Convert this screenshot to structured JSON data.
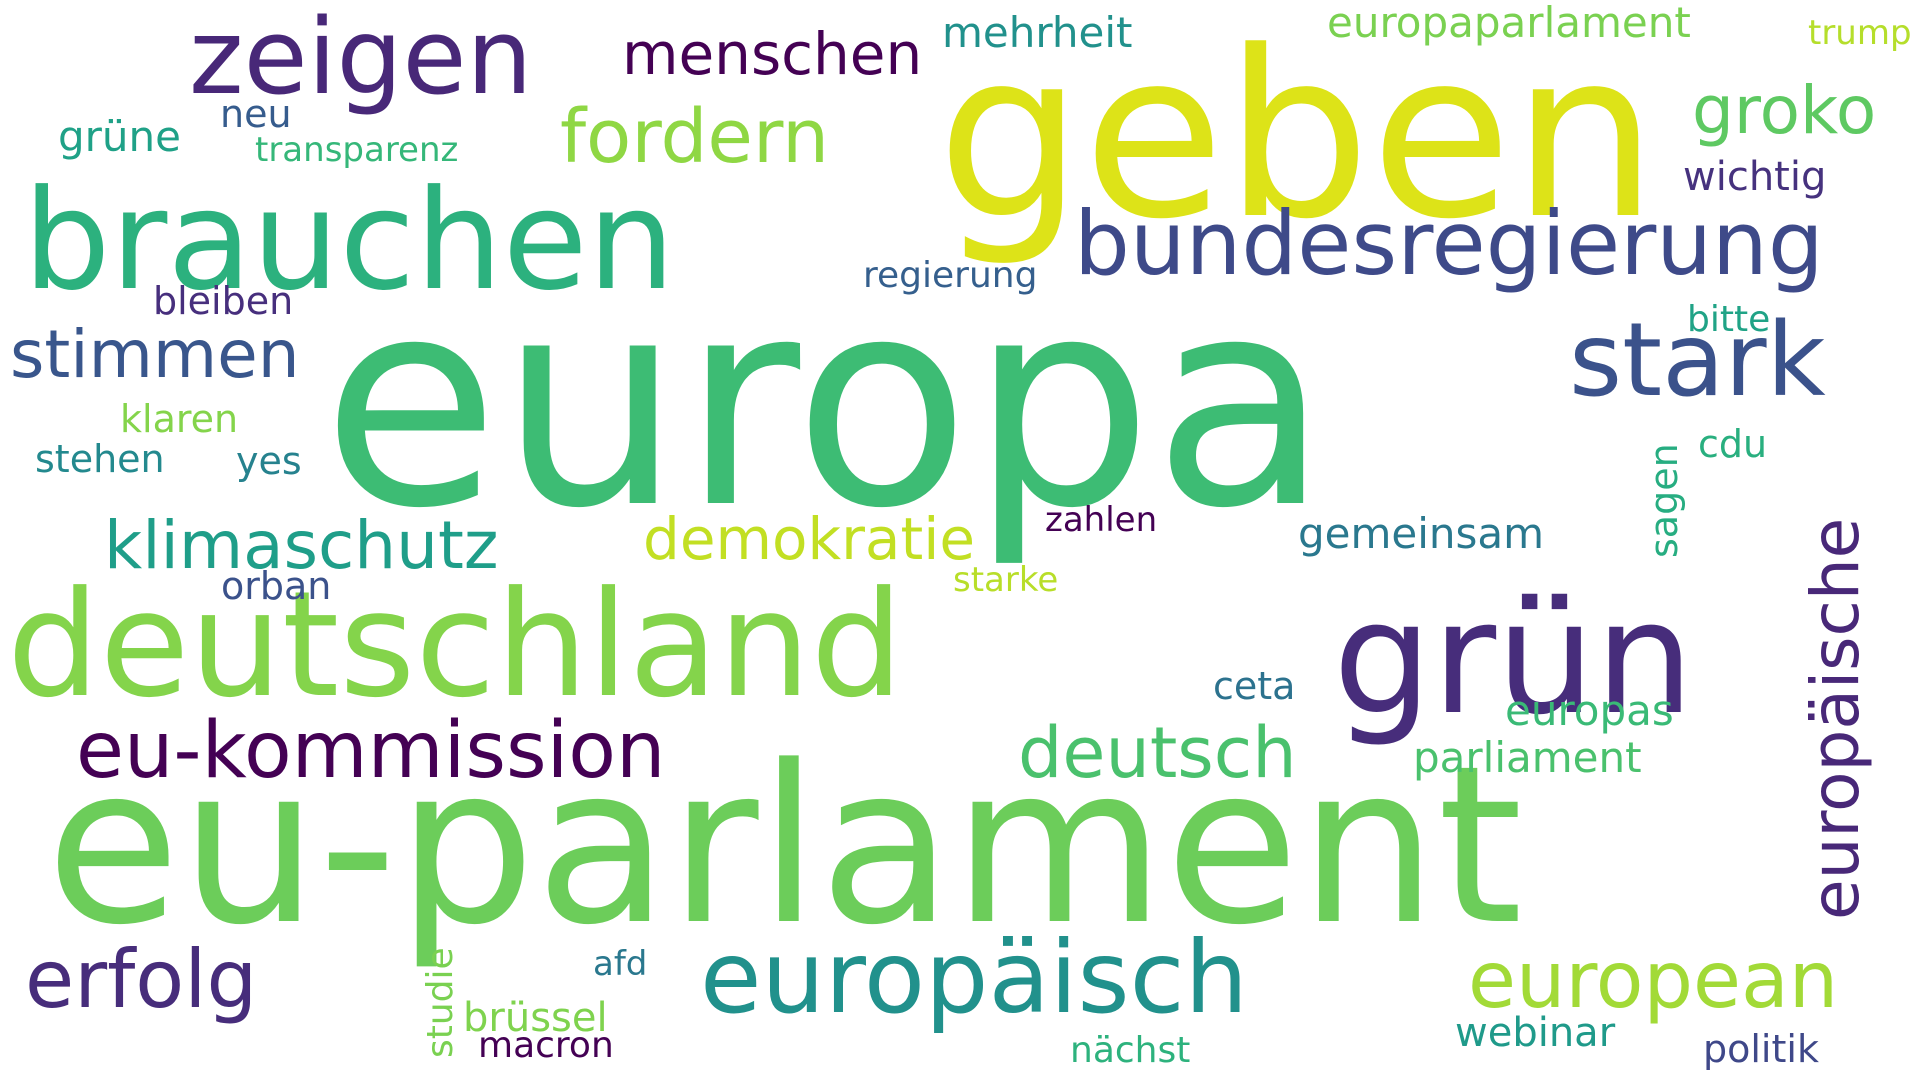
{
  "words": [
    {
      "text": "europa",
      "color": "#3dbc74"
    },
    {
      "text": "geben",
      "color": "#dde318"
    },
    {
      "text": "eu-parlament",
      "color": "#6ccd5a"
    },
    {
      "text": "deutschland",
      "color": "#84d44b"
    },
    {
      "text": "brauchen",
      "color": "#2cb17e"
    },
    {
      "text": "grün",
      "color": "#472d7b"
    },
    {
      "text": "zeigen",
      "color": "#482878"
    },
    {
      "text": "bundesregierung",
      "color": "#3e4a89"
    },
    {
      "text": "stark",
      "color": "#3b528b"
    },
    {
      "text": "europäisch",
      "color": "#21918c"
    },
    {
      "text": "eu-kommission",
      "color": "#440154"
    },
    {
      "text": "european",
      "color": "#a2da37"
    },
    {
      "text": "europäische",
      "color": "#482878"
    },
    {
      "text": "klimaschutz",
      "color": "#1f9e89"
    },
    {
      "text": "erfolg",
      "color": "#472d7b"
    },
    {
      "text": "deutsch",
      "color": "#4ac16d"
    },
    {
      "text": "fordern",
      "color": "#8fd744"
    },
    {
      "text": "groko",
      "color": "#5ec962"
    },
    {
      "text": "menschen",
      "color": "#440154"
    },
    {
      "text": "stimmen",
      "color": "#39568c"
    },
    {
      "text": "demokratie",
      "color": "#c2df23"
    },
    {
      "text": "europaparlament",
      "color": "#7ad151"
    },
    {
      "text": "mehrheit",
      "color": "#21918c"
    },
    {
      "text": "trump",
      "color": "#b5de2b"
    },
    {
      "text": "grüne",
      "color": "#1fa187"
    },
    {
      "text": "neu",
      "color": "#365c8d"
    },
    {
      "text": "transparenz",
      "color": "#35b779"
    },
    {
      "text": "wichtig",
      "color": "#46327e"
    },
    {
      "text": "regierung",
      "color": "#355f8d"
    },
    {
      "text": "bleiben",
      "color": "#472f7d"
    },
    {
      "text": "bitte",
      "color": "#20a386"
    },
    {
      "text": "klaren",
      "color": "#84d44b"
    },
    {
      "text": "stehen",
      "color": "#23898e"
    },
    {
      "text": "yes",
      "color": "#26828e"
    },
    {
      "text": "cdu",
      "color": "#29af7f"
    },
    {
      "text": "sagen",
      "color": "#27ad81"
    },
    {
      "text": "zahlen",
      "color": "#440154"
    },
    {
      "text": "gemeinsam",
      "color": "#2a788e"
    },
    {
      "text": "orban",
      "color": "#3b528b"
    },
    {
      "text": "starke",
      "color": "#b8de29"
    },
    {
      "text": "ceta",
      "color": "#2c728e"
    },
    {
      "text": "europas",
      "color": "#3aba76"
    },
    {
      "text": "parliament",
      "color": "#4ac16d"
    },
    {
      "text": "afd",
      "color": "#2a788e"
    },
    {
      "text": "studie",
      "color": "#7ad151"
    },
    {
      "text": "brüssel",
      "color": "#7fd34e"
    },
    {
      "text": "macron",
      "color": "#440154"
    },
    {
      "text": "webinar",
      "color": "#1f9a8a"
    },
    {
      "text": "nächst",
      "color": "#2db27d"
    },
    {
      "text": "politik",
      "color": "#3f4889"
    }
  ]
}
